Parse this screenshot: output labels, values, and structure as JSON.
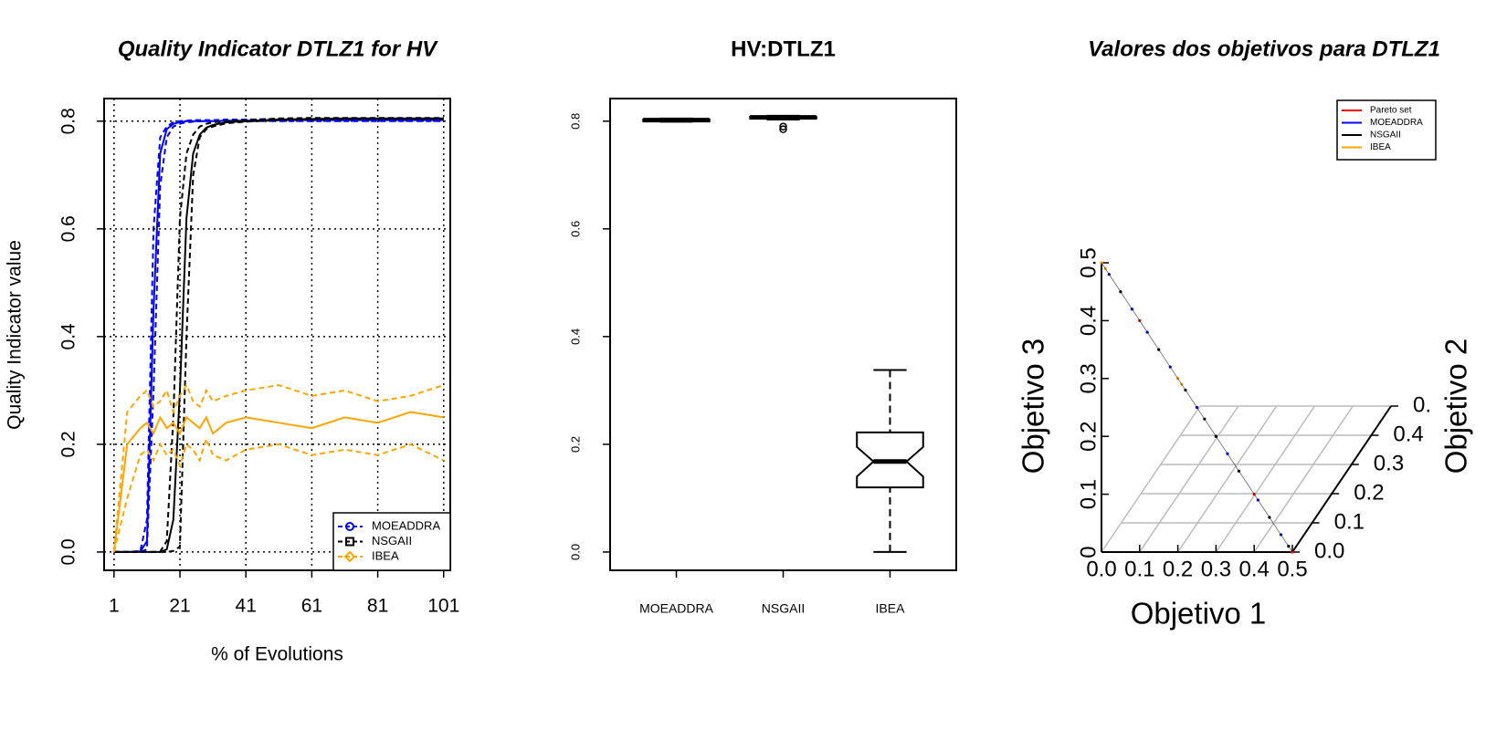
{
  "chart_data": [
    {
      "type": "line",
      "title": "Quality Indicator DTLZ1 for HV",
      "xlabel": "% of Evolutions",
      "ylabel": "Quality Indicator value",
      "x": [
        1,
        5,
        9,
        11,
        13,
        15,
        17,
        19,
        21,
        23,
        25,
        27,
        29,
        31,
        35,
        41,
        51,
        61,
        71,
        81,
        91,
        101
      ],
      "series": [
        {
          "name": "MOEADDRA",
          "color": "#0000ff",
          "marker": "circle",
          "values": [
            0,
            0,
            0.001,
            0.02,
            0.45,
            0.74,
            0.785,
            0.795,
            0.798,
            0.8,
            0.8,
            0.8,
            0.8,
            0.8,
            0.801,
            0.801,
            0.802,
            0.802,
            0.802,
            0.802,
            0.802,
            0.802
          ],
          "lower": [
            0,
            0,
            0,
            0.005,
            0.3,
            0.68,
            0.77,
            0.79,
            0.795,
            0.798,
            0.799,
            0.8,
            0.8,
            0.8,
            0.8,
            0.8,
            0.8,
            0.8,
            0.8,
            0.8,
            0.8,
            0.8
          ],
          "upper": [
            0,
            0,
            0.002,
            0.06,
            0.6,
            0.77,
            0.79,
            0.798,
            0.8,
            0.801,
            0.802,
            0.802,
            0.802,
            0.802,
            0.803,
            0.803,
            0.804,
            0.804,
            0.804,
            0.804,
            0.804,
            0.804
          ]
        },
        {
          "name": "NSGAII",
          "color": "#000000",
          "marker": "square",
          "values": [
            0,
            0,
            0,
            0,
            0,
            0,
            0.005,
            0.06,
            0.3,
            0.62,
            0.74,
            0.775,
            0.788,
            0.793,
            0.798,
            0.8,
            0.803,
            0.804,
            0.805,
            0.805,
            0.805,
            0.805
          ],
          "lower": [
            0,
            0,
            0,
            0,
            0,
            0,
            0,
            0.002,
            0.01,
            0.4,
            0.7,
            0.77,
            0.785,
            0.79,
            0.796,
            0.799,
            0.802,
            0.803,
            0.804,
            0.804,
            0.804,
            0.804
          ],
          "upper": [
            0,
            0,
            0,
            0,
            0,
            0.001,
            0.02,
            0.25,
            0.62,
            0.74,
            0.775,
            0.79,
            0.795,
            0.798,
            0.8,
            0.802,
            0.805,
            0.806,
            0.806,
            0.806,
            0.806,
            0.806
          ]
        },
        {
          "name": "IBEA",
          "color": "#ffa500",
          "marker": "diamond",
          "values": [
            0,
            0.2,
            0.23,
            0.24,
            0.22,
            0.25,
            0.23,
            0.24,
            0.22,
            0.25,
            0.24,
            0.23,
            0.25,
            0.22,
            0.24,
            0.25,
            0.24,
            0.23,
            0.25,
            0.24,
            0.26,
            0.25
          ],
          "lower": [
            0,
            0.1,
            0.18,
            0.19,
            0.17,
            0.2,
            0.18,
            0.19,
            0.16,
            0.2,
            0.19,
            0.17,
            0.21,
            0.18,
            0.17,
            0.19,
            0.2,
            0.18,
            0.19,
            0.18,
            0.2,
            0.17
          ],
          "upper": [
            0,
            0.26,
            0.29,
            0.3,
            0.27,
            0.28,
            0.3,
            0.26,
            0.29,
            0.31,
            0.28,
            0.27,
            0.3,
            0.28,
            0.29,
            0.3,
            0.31,
            0.29,
            0.3,
            0.28,
            0.29,
            0.31
          ]
        }
      ],
      "xlim": [
        -2,
        103
      ],
      "xticks": [
        1,
        21,
        41,
        61,
        81,
        101
      ],
      "ylim": [
        -0.034,
        0.842
      ],
      "yticks": [
        {
          "value": 0,
          "label": "0.0"
        },
        0.2,
        0.4,
        0.6,
        0.8
      ],
      "grid": true,
      "legend": "bottom-right"
    },
    {
      "type": "box",
      "title": "HV:DTLZ1",
      "categories": [
        "MOEADDRA",
        "NSGAII",
        "IBEA"
      ],
      "boxes": [
        {
          "min": 0.799,
          "q1": 0.8,
          "median": 0.802,
          "q3": 0.803,
          "max": 0.805,
          "outliers": []
        },
        {
          "min": 0.803,
          "q1": 0.805,
          "median": 0.807,
          "q3": 0.808,
          "max": 0.81,
          "outliers": [
            0.785,
            0.79
          ]
        },
        {
          "min": 0,
          "q1": 0.12,
          "median": 0.168,
          "q3": 0.222,
          "max": 0.338,
          "notch": [
            0.14,
            0.195
          ],
          "outliers": []
        }
      ],
      "ylim": [
        -0.034,
        0.842
      ],
      "yticks": [
        {
          "value": 0,
          "label": "0.0"
        },
        0.2,
        0.4,
        0.6,
        0.8
      ]
    },
    {
      "type": "scatter3d",
      "title": "Valores dos objetivos para DTLZ1",
      "xlabel": "Objetivo 1",
      "ylabel": "Objetivo 2",
      "zlabel": "Objetivo 3",
      "series": [
        {
          "name": "Pareto set",
          "color": "#ff0000",
          "x": [
            0,
            0.1,
            0.2,
            0.3,
            0.4,
            0.5
          ],
          "y": [
            0,
            0,
            0,
            0,
            0,
            0
          ],
          "z": [
            0.5,
            0.4,
            0.3,
            0.2,
            0.1,
            0
          ]
        },
        {
          "name": "MOEADDRA",
          "color": "#0000ff",
          "x": [
            0.02,
            0.08,
            0.12,
            0.18,
            0.25,
            0.33,
            0.41,
            0.47
          ],
          "y": [
            0,
            0,
            0,
            0,
            0,
            0,
            0,
            0
          ],
          "z": [
            0.48,
            0.42,
            0.38,
            0.32,
            0.25,
            0.17,
            0.09,
            0.03
          ]
        },
        {
          "name": "NSGAII",
          "color": "#000000",
          "x": [
            0.05,
            0.15,
            0.22,
            0.27,
            0.3,
            0.36,
            0.44,
            0.49
          ],
          "y": [
            0,
            0,
            0,
            0,
            0,
            0,
            0,
            0
          ],
          "z": [
            0.45,
            0.35,
            0.28,
            0.23,
            0.2,
            0.14,
            0.06,
            0.01
          ]
        },
        {
          "name": "IBEA",
          "color": "#ffa500",
          "x": [
            0,
            0.01,
            0.2,
            0.21
          ],
          "y": [
            0,
            0,
            0,
            0
          ],
          "z": [
            0.5,
            0.49,
            0.3,
            0.29
          ]
        }
      ],
      "xlim": [
        0,
        0.5
      ],
      "ylim": [
        0,
        0.5
      ],
      "zlim": [
        0,
        0.5
      ],
      "xticks": [
        {
          "value": 0,
          "label": "0.0"
        },
        0.1,
        0.2,
        0.3,
        0.4,
        0.5
      ],
      "yticks": [
        {
          "value": 0,
          "label": "0.0"
        },
        0.1,
        0.2,
        0.3,
        0.4,
        {
          "value": 0.5,
          "label": "0."
        }
      ],
      "zticks": [
        0,
        0.1,
        0.2,
        0.3,
        0.4,
        0.5
      ],
      "grid": true,
      "legend": "top-right"
    }
  ]
}
